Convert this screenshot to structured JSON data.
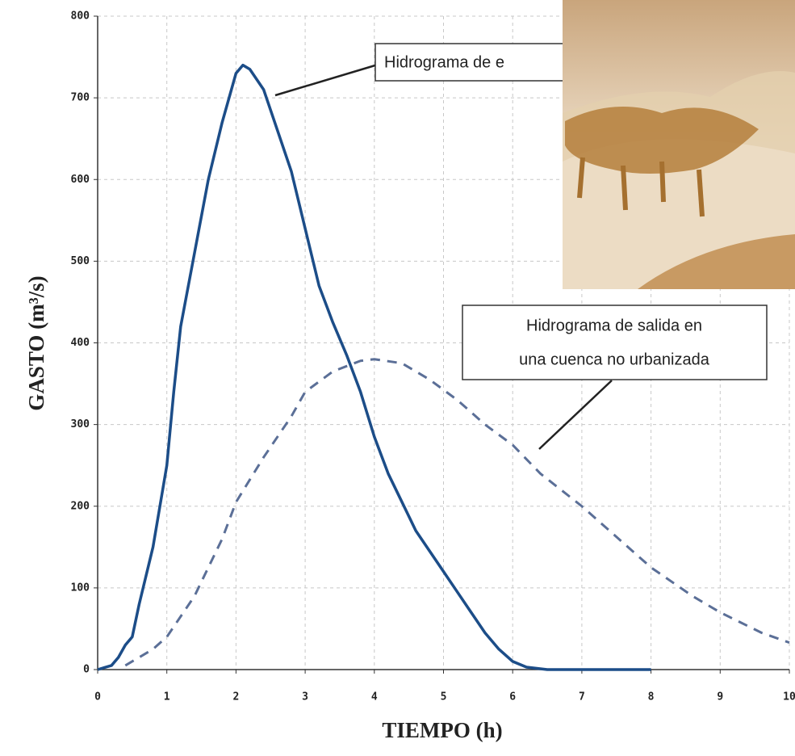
{
  "chart_data": {
    "type": "line",
    "x_label": "TIEMPO (h)",
    "y_label": "GASTO (m³/s)",
    "xlim": [
      0,
      10
    ],
    "xticks": [
      0,
      1,
      2,
      3,
      4,
      5,
      6,
      7,
      8,
      9,
      10
    ],
    "ylim": [
      0,
      800
    ],
    "yticks": [
      0,
      100,
      200,
      300,
      400,
      500,
      600,
      700,
      800
    ],
    "grid": true,
    "series": [
      {
        "color": "#1c4d88",
        "style": "solid",
        "x": [
          0,
          0.2,
          0.3,
          0.4,
          0.5,
          0.6,
          0.8,
          1.0,
          1.1,
          1.2,
          1.4,
          1.6,
          1.8,
          2.0,
          2.1,
          2.2,
          2.4,
          2.6,
          2.8,
          3.0,
          3.2,
          3.4,
          3.6,
          3.8,
          4.0,
          4.2,
          4.4,
          4.6,
          4.8,
          5.0,
          5.2,
          5.4,
          5.6,
          5.8,
          6.0,
          6.2,
          6.5,
          7,
          8
        ],
        "values": [
          0,
          5,
          15,
          30,
          40,
          80,
          150,
          250,
          340,
          420,
          510,
          600,
          670,
          730,
          740,
          735,
          710,
          660,
          610,
          540,
          470,
          425,
          385,
          340,
          285,
          240,
          205,
          170,
          145,
          120,
          95,
          70,
          45,
          25,
          10,
          3,
          0,
          0,
          0
        ]
      },
      {
        "color": "#5b6f97",
        "style": "dashed",
        "x": [
          0.4,
          0.8,
          1.0,
          1.4,
          1.8,
          2.0,
          2.4,
          2.8,
          3.0,
          3.4,
          3.8,
          4.0,
          4.4,
          4.8,
          5.2,
          5.6,
          6.0,
          6.4,
          7.0,
          7.4,
          8.0,
          8.6,
          9.0,
          9.6,
          10
        ],
        "values": [
          5,
          25,
          40,
          90,
          160,
          205,
          260,
          310,
          340,
          365,
          378,
          380,
          375,
          355,
          330,
          300,
          275,
          240,
          200,
          170,
          125,
          90,
          70,
          45,
          33
        ]
      }
    ],
    "annotations": [
      {
        "lines": [
          "Hidrograma de e"
        ]
      },
      {
        "lines": [
          "Hidrograma de salida en",
          "una cuenca no urbanizada"
        ]
      }
    ]
  }
}
